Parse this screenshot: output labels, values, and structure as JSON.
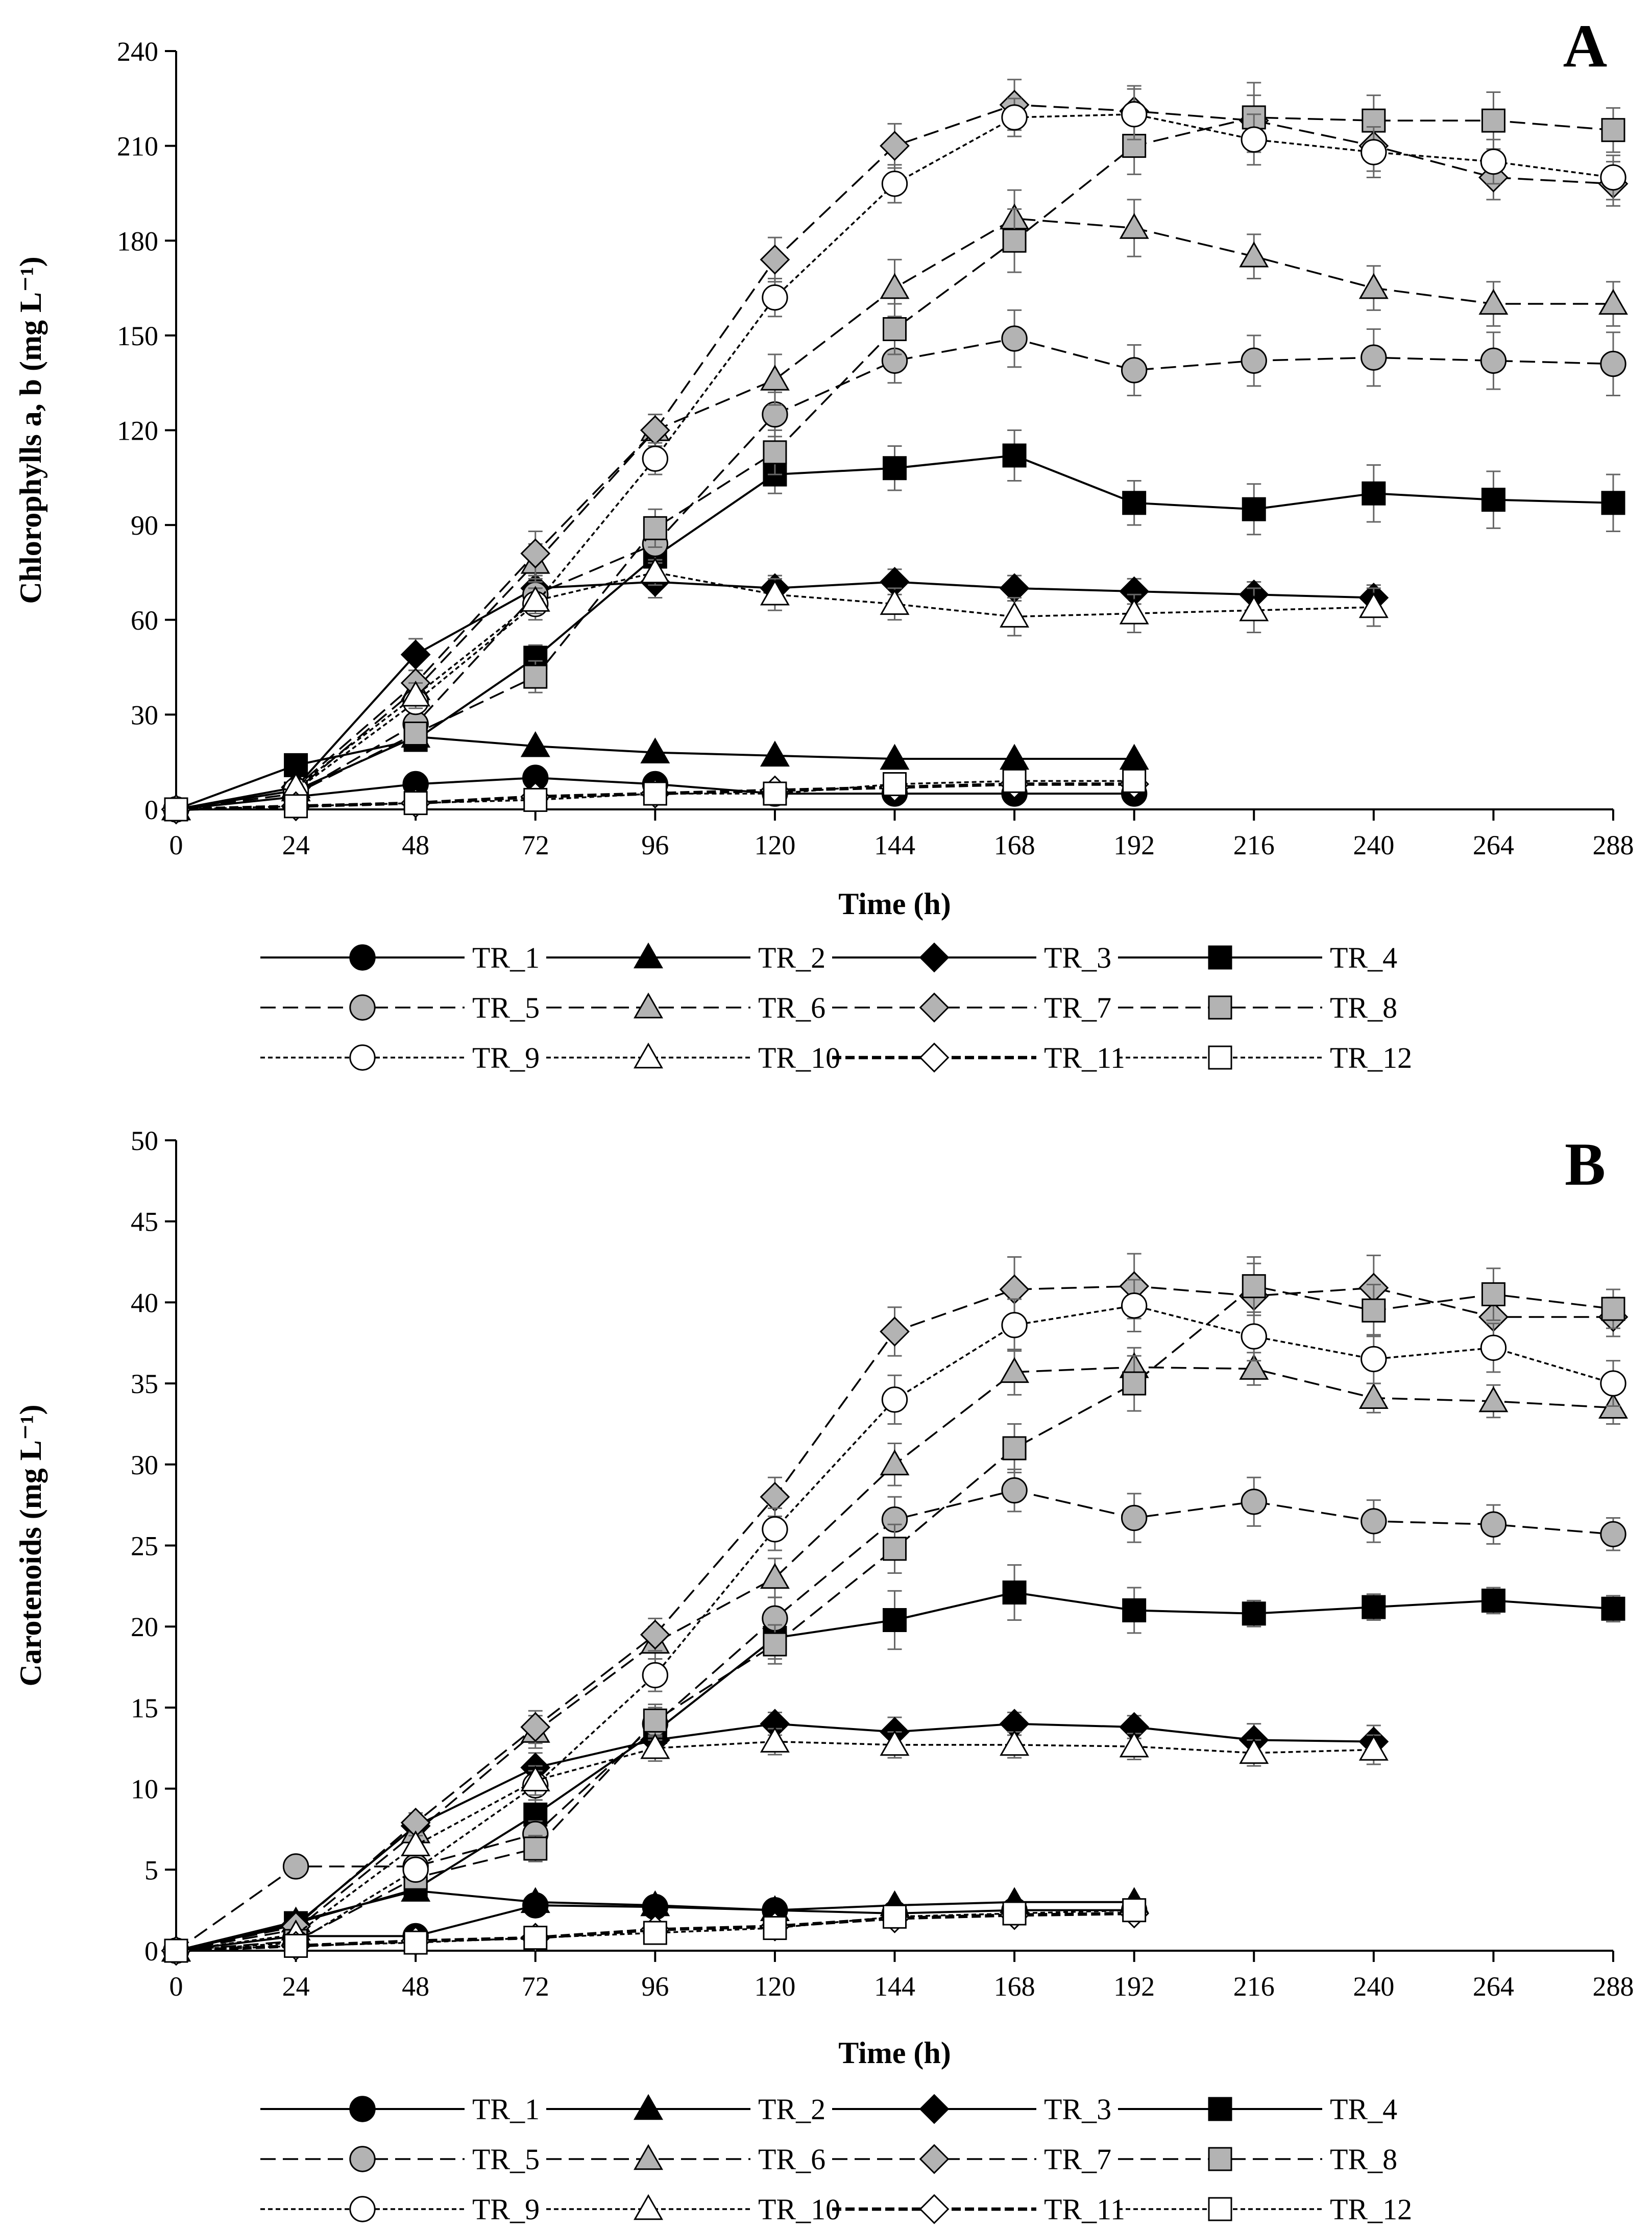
{
  "chart_data": [
    {
      "type": "line",
      "panel": "A",
      "xlabel": "Time (h)",
      "ylabel": "Chlorophylls a, b (mg L⁻¹)",
      "xlim": [
        0,
        288
      ],
      "ylim": [
        0,
        240
      ],
      "xticks": [
        0,
        24,
        48,
        72,
        96,
        120,
        144,
        168,
        192,
        216,
        240,
        264,
        288
      ],
      "yticks": [
        0,
        30,
        60,
        90,
        120,
        150,
        180,
        210,
        240
      ],
      "series": [
        {
          "name": "TR_1",
          "style": {
            "dash": "solid",
            "marker": "circle",
            "fill": "black"
          },
          "x": [
            0,
            24,
            48,
            72,
            96,
            120,
            144,
            168,
            192
          ],
          "y": [
            0,
            4,
            8,
            10,
            8,
            5,
            5,
            5,
            5
          ]
        },
        {
          "name": "TR_2",
          "style": {
            "dash": "solid",
            "marker": "triangle",
            "fill": "black"
          },
          "x": [
            0,
            24,
            48,
            72,
            96,
            120,
            144,
            168,
            192
          ],
          "y": [
            0,
            6,
            23,
            20,
            18,
            17,
            16,
            16,
            16
          ]
        },
        {
          "name": "TR_3",
          "style": {
            "dash": "solid",
            "marker": "diamond",
            "fill": "black"
          },
          "x": [
            0,
            24,
            48,
            72,
            96,
            120,
            144,
            168,
            192,
            216,
            240
          ],
          "y": [
            0,
            7,
            49,
            70,
            72,
            70,
            72,
            70,
            69,
            68,
            67
          ],
          "err": [
            0,
            1,
            5,
            4,
            5,
            4,
            4,
            4,
            4,
            4,
            4
          ]
        },
        {
          "name": "TR_4",
          "style": {
            "dash": "solid",
            "marker": "square",
            "fill": "black"
          },
          "x": [
            0,
            24,
            48,
            72,
            96,
            120,
            144,
            168,
            192,
            216,
            240,
            264,
            288
          ],
          "y": [
            0,
            14,
            22,
            48,
            80,
            106,
            108,
            112,
            97,
            95,
            100,
            98,
            97
          ],
          "err": [
            0,
            2,
            3,
            4,
            6,
            6,
            7,
            8,
            7,
            8,
            9,
            9,
            9
          ]
        },
        {
          "name": "TR_5",
          "style": {
            "dash": "dash",
            "marker": "circle",
            "fill": "gray"
          },
          "x": [
            0,
            24,
            48,
            72,
            96,
            120,
            144,
            168,
            192,
            216,
            240,
            264,
            288
          ],
          "y": [
            0,
            5,
            27,
            68,
            84,
            125,
            142,
            149,
            139,
            142,
            143,
            142,
            141
          ],
          "err": [
            0,
            1,
            3,
            5,
            6,
            7,
            7,
            9,
            8,
            8,
            9,
            9,
            10
          ]
        },
        {
          "name": "TR_6",
          "style": {
            "dash": "dash",
            "marker": "triangle",
            "fill": "gray"
          },
          "x": [
            0,
            24,
            48,
            72,
            96,
            120,
            144,
            168,
            192,
            216,
            240,
            264,
            288
          ],
          "y": [
            0,
            6,
            38,
            78,
            120,
            136,
            165,
            187,
            184,
            175,
            165,
            160,
            160
          ],
          "err": [
            0,
            1,
            4,
            6,
            5,
            8,
            9,
            9,
            9,
            7,
            7,
            7,
            7
          ]
        },
        {
          "name": "TR_7",
          "style": {
            "dash": "dash",
            "marker": "diamond",
            "fill": "gray"
          },
          "x": [
            0,
            24,
            48,
            72,
            96,
            120,
            144,
            168,
            192,
            216,
            240,
            264,
            288
          ],
          "y": [
            0,
            7,
            40,
            81,
            120,
            174,
            210,
            223,
            221,
            218,
            210,
            200,
            198
          ],
          "err": [
            0,
            1,
            4,
            7,
            5,
            7,
            7,
            8,
            8,
            8,
            8,
            7,
            7
          ]
        },
        {
          "name": "TR_8",
          "style": {
            "dash": "dash",
            "marker": "square",
            "fill": "gray"
          },
          "x": [
            0,
            24,
            48,
            72,
            96,
            120,
            144,
            168,
            192,
            216,
            240,
            264,
            288
          ],
          "y": [
            0,
            5,
            24,
            42,
            89,
            113,
            152,
            180,
            210,
            219,
            218,
            218,
            215
          ],
          "err": [
            0,
            1,
            3,
            5,
            6,
            7,
            8,
            10,
            9,
            11,
            8,
            9,
            7
          ]
        },
        {
          "name": "TR_9",
          "style": {
            "dash": "dot",
            "marker": "circle",
            "fill": "white"
          },
          "x": [
            0,
            24,
            48,
            72,
            96,
            120,
            144,
            168,
            192,
            216,
            240,
            264,
            288
          ],
          "y": [
            0,
            6,
            34,
            65,
            111,
            162,
            198,
            219,
            220,
            212,
            208,
            205,
            200
          ],
          "err": [
            0,
            1,
            3,
            5,
            5,
            6,
            6,
            6,
            8,
            8,
            8,
            7,
            7
          ]
        },
        {
          "name": "TR_10",
          "style": {
            "dash": "dot",
            "marker": "triangle",
            "fill": "white"
          },
          "x": [
            0,
            24,
            48,
            72,
            96,
            120,
            144,
            168,
            192,
            216,
            240
          ],
          "y": [
            0,
            7,
            36,
            66,
            75,
            68,
            65,
            61,
            62,
            63,
            64
          ],
          "err": [
            0,
            1,
            4,
            4,
            4,
            5,
            5,
            6,
            6,
            7,
            6
          ]
        },
        {
          "name": "TR_11",
          "style": {
            "dash": "dash-bold",
            "marker": "diamond",
            "fill": "white"
          },
          "x": [
            0,
            24,
            48,
            72,
            96,
            120,
            144,
            168,
            192
          ],
          "y": [
            0,
            1,
            2,
            4,
            5,
            6,
            7,
            8,
            8
          ]
        },
        {
          "name": "TR_12",
          "style": {
            "dash": "dot",
            "marker": "square",
            "fill": "white"
          },
          "x": [
            0,
            24,
            48,
            72,
            96,
            120,
            144,
            168,
            192
          ],
          "y": [
            0,
            1,
            2,
            3,
            5,
            5,
            8,
            9,
            9
          ]
        }
      ]
    },
    {
      "type": "line",
      "panel": "B",
      "xlabel": "Time (h)",
      "ylabel": "Carotenoids (mg L⁻¹)",
      "xlim": [
        0,
        288
      ],
      "ylim": [
        0,
        50
      ],
      "xticks": [
        0,
        24,
        48,
        72,
        96,
        120,
        144,
        168,
        192,
        216,
        240,
        264,
        288
      ],
      "yticks": [
        0,
        5,
        10,
        15,
        20,
        25,
        30,
        35,
        40,
        45,
        50
      ],
      "series": [
        {
          "name": "TR_1",
          "style": {
            "dash": "solid",
            "marker": "circle",
            "fill": "black"
          },
          "x": [
            0,
            24,
            48,
            72,
            96,
            120,
            144,
            168,
            192
          ],
          "y": [
            0,
            0.9,
            0.9,
            2.8,
            2.7,
            2.5,
            2.3,
            2.5,
            2.5
          ]
        },
        {
          "name": "TR_2",
          "style": {
            "dash": "solid",
            "marker": "triangle",
            "fill": "black"
          },
          "x": [
            0,
            24,
            48,
            72,
            96,
            120,
            144,
            168,
            192
          ],
          "y": [
            0,
            1.8,
            3.7,
            3,
            2.8,
            2.5,
            2.8,
            3,
            3
          ]
        },
        {
          "name": "TR_3",
          "style": {
            "dash": "solid",
            "marker": "diamond",
            "fill": "black"
          },
          "x": [
            0,
            24,
            48,
            72,
            96,
            120,
            144,
            168,
            192,
            216,
            240
          ],
          "y": [
            0,
            1.6,
            7.7,
            11.3,
            13,
            14,
            13.5,
            14,
            13.8,
            13,
            12.9
          ],
          "err": [
            0,
            0.2,
            0.6,
            0.9,
            0.9,
            0.7,
            0.9,
            0.7,
            0.7,
            1,
            1
          ]
        },
        {
          "name": "TR_4",
          "style": {
            "dash": "solid",
            "marker": "square",
            "fill": "black"
          },
          "x": [
            0,
            24,
            48,
            72,
            96,
            120,
            144,
            168,
            192,
            216,
            240,
            264,
            288
          ],
          "y": [
            0,
            1.7,
            3.8,
            8.4,
            13.5,
            19.3,
            20.4,
            22.1,
            21,
            20.8,
            21.2,
            21.6,
            21.1
          ],
          "err": [
            0,
            0.2,
            0.4,
            0.9,
            1,
            1.3,
            1.8,
            1.7,
            1.4,
            0.8,
            0.8,
            0.8,
            0.8
          ]
        },
        {
          "name": "TR_5",
          "style": {
            "dash": "dash",
            "marker": "circle",
            "fill": "gray"
          },
          "x": [
            0,
            24,
            48,
            72,
            96,
            120,
            144,
            168,
            192,
            216,
            240,
            264,
            288
          ],
          "y": [
            0,
            5.2,
            5.2,
            7.2,
            14,
            20.5,
            26.6,
            28.4,
            26.7,
            27.7,
            26.5,
            26.3,
            25.7
          ],
          "err": [
            0,
            0.2,
            0.4,
            0.8,
            1,
            1.3,
            1.4,
            1.3,
            1.5,
            1.5,
            1.3,
            1.2,
            1
          ]
        },
        {
          "name": "TR_6",
          "style": {
            "dash": "dash",
            "marker": "triangle",
            "fill": "gray"
          },
          "x": [
            0,
            24,
            48,
            72,
            96,
            120,
            144,
            168,
            192,
            216,
            240,
            264,
            288
          ],
          "y": [
            0,
            1.3,
            7.3,
            13.5,
            19,
            23,
            30,
            35.7,
            36,
            35.9,
            34.1,
            33.9,
            33.5
          ],
          "err": [
            0,
            0.2,
            0.6,
            1,
            1,
            1.2,
            1.3,
            1.4,
            1.2,
            1,
            0.9,
            1,
            1
          ]
        },
        {
          "name": "TR_7",
          "style": {
            "dash": "dash",
            "marker": "diamond",
            "fill": "gray"
          },
          "x": [
            0,
            24,
            48,
            72,
            96,
            120,
            144,
            168,
            192,
            216,
            240,
            264,
            288
          ],
          "y": [
            0,
            1.5,
            7.9,
            13.8,
            19.5,
            28,
            38.2,
            40.8,
            41,
            40.4,
            40.9,
            39.1,
            39.1
          ],
          "err": [
            0,
            0.2,
            0.6,
            1,
            1,
            1.2,
            1.5,
            2,
            2,
            2,
            2,
            1.5,
            1.2
          ]
        },
        {
          "name": "TR_8",
          "style": {
            "dash": "dash",
            "marker": "square",
            "fill": "gray"
          },
          "x": [
            0,
            24,
            48,
            72,
            96,
            120,
            144,
            168,
            192,
            216,
            240,
            264,
            288
          ],
          "y": [
            0,
            0.6,
            4.5,
            6.3,
            14.2,
            18.9,
            24.8,
            31,
            35,
            41,
            39.5,
            40.5,
            39.6
          ],
          "err": [
            0,
            0.2,
            0.5,
            0.8,
            1,
            1.2,
            1.5,
            1.5,
            1.7,
            1.8,
            1.6,
            1.6,
            1.2
          ]
        },
        {
          "name": "TR_9",
          "style": {
            "dash": "dot",
            "marker": "circle",
            "fill": "white"
          },
          "x": [
            0,
            24,
            48,
            72,
            96,
            120,
            144,
            168,
            192,
            216,
            240,
            264,
            288
          ],
          "y": [
            0,
            0.5,
            5,
            10.2,
            17,
            26,
            34,
            38.6,
            39.8,
            37.9,
            36.5,
            37.2,
            35
          ],
          "err": [
            0,
            0.2,
            0.5,
            0.9,
            1,
            1.3,
            1.5,
            1.6,
            1.6,
            1.5,
            1.5,
            1.5,
            1.4
          ]
        },
        {
          "name": "TR_10",
          "style": {
            "dash": "dot",
            "marker": "triangle",
            "fill": "white"
          },
          "x": [
            0,
            24,
            48,
            72,
            96,
            120,
            144,
            168,
            192,
            216,
            240
          ],
          "y": [
            0,
            1,
            6.5,
            10.5,
            12.5,
            12.9,
            12.7,
            12.7,
            12.6,
            12.2,
            12.4
          ],
          "err": [
            0,
            0.2,
            0.6,
            0.9,
            0.8,
            0.8,
            0.8,
            0.8,
            0.8,
            0.8,
            0.9
          ]
        },
        {
          "name": "TR_11",
          "style": {
            "dash": "dash-bold",
            "marker": "diamond",
            "fill": "white"
          },
          "x": [
            0,
            24,
            48,
            72,
            96,
            120,
            144,
            168,
            192
          ],
          "y": [
            0,
            0.3,
            0.6,
            0.8,
            1.3,
            1.5,
            2,
            2.2,
            2.3
          ]
        },
        {
          "name": "TR_12",
          "style": {
            "dash": "dot",
            "marker": "square",
            "fill": "white"
          },
          "x": [
            0,
            24,
            48,
            72,
            96,
            120,
            144,
            168,
            192
          ],
          "y": [
            0,
            0.3,
            0.5,
            0.8,
            1.1,
            1.4,
            2.1,
            2.3,
            2.5
          ]
        }
      ]
    }
  ],
  "colors": {
    "black": "#000000",
    "gray": "#b3b3b3",
    "white": "#ffffff",
    "axis": "#000000",
    "errorbar": "#666666"
  }
}
